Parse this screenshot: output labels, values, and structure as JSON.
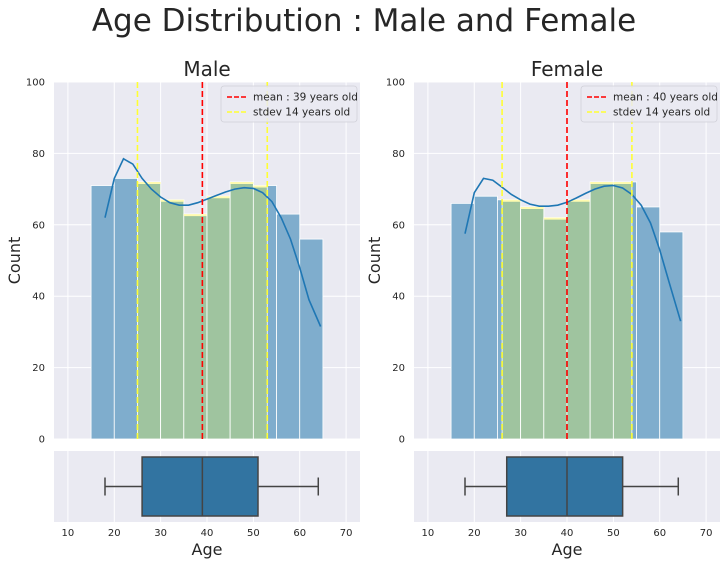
{
  "suptitle": "Age Distribution : Male and Female",
  "chart_data": [
    {
      "type": "histogram",
      "title": "Male",
      "xlabel": "Age",
      "ylabel": "Count",
      "xlim": [
        7,
        73
      ],
      "ylim": [
        0,
        100
      ],
      "xticks": [
        10,
        20,
        30,
        40,
        50,
        60,
        70
      ],
      "yticks": [
        0,
        20,
        40,
        60,
        80,
        100
      ],
      "bins": [
        15,
        20,
        25,
        30,
        35,
        40,
        45,
        50,
        55,
        60,
        65
      ],
      "counts": [
        71,
        73,
        72,
        67,
        63,
        68,
        72,
        71,
        63,
        56
      ],
      "kde": {
        "x": [
          18,
          20,
          22,
          24,
          26,
          28,
          30,
          32,
          34,
          36,
          38,
          40,
          42,
          44,
          46,
          48,
          50,
          52,
          54,
          56,
          58,
          60,
          62,
          64.5
        ],
        "y": [
          62,
          73,
          78.5,
          77,
          73,
          70,
          67.8,
          66.2,
          65.5,
          65.5,
          66.2,
          67.2,
          68.2,
          69.2,
          70,
          70.4,
          70.2,
          69,
          66.5,
          62,
          56,
          48,
          39,
          31.5
        ]
      },
      "mean": 39,
      "stdev": 14,
      "mean_label": "mean : 39 years old",
      "stdev_label": "stdev 14 years old",
      "boxplot": {
        "min": 18,
        "q1": 26,
        "median": 39,
        "q3": 51,
        "max": 64
      },
      "colors": {
        "bar": "#7fadcd",
        "highlight": "#9fc49f",
        "kde": "#1f77b4",
        "mean": "#ff0000",
        "stdev": "#ffff33",
        "box": "#3274a1"
      }
    },
    {
      "type": "histogram",
      "title": "Female",
      "xlabel": "Age",
      "ylabel": "Count",
      "xlim": [
        7,
        73
      ],
      "ylim": [
        0,
        100
      ],
      "xticks": [
        10,
        20,
        30,
        40,
        50,
        60,
        70
      ],
      "yticks": [
        0,
        20,
        40,
        60,
        80,
        100
      ],
      "bins": [
        15,
        20,
        25,
        30,
        35,
        40,
        45,
        50,
        55,
        60,
        65
      ],
      "counts": [
        66,
        68,
        67,
        65,
        62,
        67,
        72,
        72,
        65,
        58
      ],
      "kde": {
        "x": [
          18,
          20,
          22,
          24,
          26,
          28,
          30,
          32,
          34,
          36,
          38,
          40,
          42,
          44,
          46,
          48,
          50,
          52,
          54,
          56,
          58,
          60,
          62,
          64.5
        ],
        "y": [
          57.5,
          69,
          73,
          72.5,
          70.5,
          68.5,
          67,
          65.8,
          65.2,
          65.2,
          65.5,
          66.3,
          67.5,
          68.8,
          70,
          70.8,
          71,
          70.3,
          68.5,
          65.5,
          60.5,
          53,
          44,
          33
        ]
      },
      "mean": 40,
      "stdev": 14,
      "mean_label": "mean : 40 years old",
      "stdev_label": "stdev 14 years old",
      "boxplot": {
        "min": 18,
        "q1": 27,
        "median": 40,
        "q3": 52,
        "max": 64
      },
      "colors": {
        "bar": "#7fadcd",
        "highlight": "#9fc49f",
        "kde": "#1f77b4",
        "mean": "#ff0000",
        "stdev": "#ffff33",
        "box": "#3274a1"
      }
    }
  ],
  "style": {
    "background": "#eaeaf2",
    "grid": "#ffffff"
  }
}
